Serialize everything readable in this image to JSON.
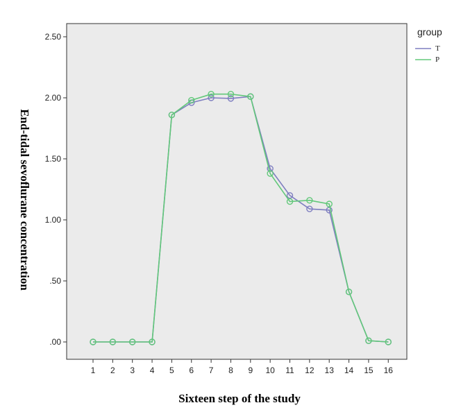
{
  "chart_data": {
    "type": "line",
    "title": "",
    "xlabel": "Sixteen step of the study",
    "ylabel": "End-tidal sevoflurane concentration",
    "categories": [
      "1",
      "2",
      "3",
      "4",
      "5",
      "6",
      "7",
      "8",
      "9",
      "10",
      "11",
      "12",
      "13",
      "14",
      "15",
      "16"
    ],
    "ylim": [
      0,
      2.5
    ],
    "yticks": [
      ".00",
      ".50",
      "1.00",
      "1.50",
      "2.00",
      "2.50"
    ],
    "ytick_values": [
      0,
      0.5,
      1.0,
      1.5,
      2.0,
      2.5
    ],
    "grid": false,
    "legend": {
      "title": "group",
      "placement": "top-right"
    },
    "series": [
      {
        "name": "T",
        "color": "#7e7ec0",
        "marker": "circle-open",
        "values": [
          0,
          0,
          0,
          0,
          1.86,
          1.96,
          2.0,
          1.995,
          2.01,
          1.42,
          1.2,
          1.09,
          1.08,
          0.41,
          0.01,
          0
        ]
      },
      {
        "name": "P",
        "color": "#62c87a",
        "marker": "circle-open",
        "values": [
          0,
          0,
          0,
          0,
          1.86,
          1.98,
          2.03,
          2.03,
          2.01,
          1.38,
          1.15,
          1.16,
          1.13,
          0.41,
          0.01,
          0
        ]
      }
    ],
    "plot_background": "#ebebeb"
  }
}
